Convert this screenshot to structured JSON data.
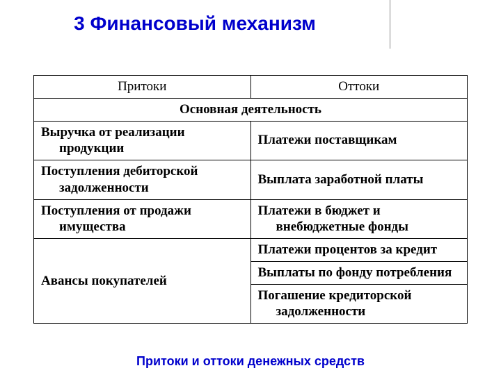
{
  "title": "3 Финансовый механизм",
  "caption": "Притоки и оттоки денежных средств",
  "table": {
    "header_left": "Притоки",
    "header_right": "Оттоки",
    "section": "Основная деятельность",
    "rows": {
      "r1_left": "Выручка от реализации продукции",
      "r1_right": "Платежи поставщикам",
      "r2_left": "Поступления дебиторской задолженности",
      "r2_right": "Выплата заработной платы",
      "r3_left": "Поступления от продажи имущества",
      "r3_right": "Платежи в бюджет и внебюджетные фонды",
      "r4_left": "Авансы покупателей",
      "r4_right_a": "Платежи процентов за кредит",
      "r4_right_b": "Выплаты по фонду потребления",
      "r4_right_c": "Погашение кредиторской задолженности"
    }
  },
  "style": {
    "title_color": "#0000cc",
    "caption_color": "#0000cc",
    "border_color": "#000000",
    "background": "#ffffff",
    "title_fontsize": 28,
    "cell_fontsize": 19,
    "caption_fontsize": 18
  }
}
